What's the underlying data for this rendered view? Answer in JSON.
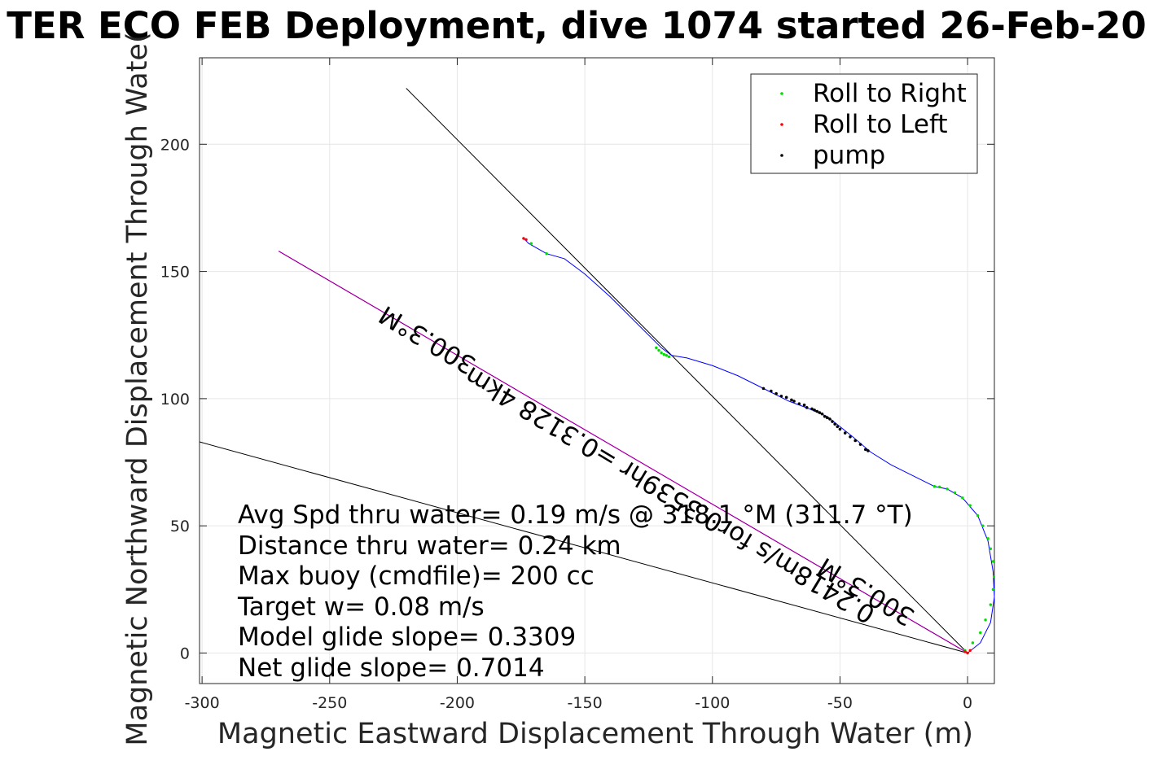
{
  "chart_data": {
    "type": "line",
    "title": "TER ECO FEB Deployment, dive 1074 started 26-Feb-20",
    "xlabel": "Magnetic Eastward Displacement Through Water (m)",
    "ylabel": "Magnetic Northward Displacement Through Wate(",
    "xlim": [
      -301,
      10.5
    ],
    "ylim": [
      -12,
      234
    ],
    "xticks": [
      -300,
      -250,
      -200,
      -150,
      -100,
      -50,
      0
    ],
    "xtick_labels": [
      "-300",
      "-250",
      "-200",
      "-150",
      "-100",
      "-50",
      "0"
    ],
    "yticks": [
      0,
      50,
      100,
      150,
      200
    ],
    "ytick_labels": [
      "0",
      "50",
      "100",
      "150",
      "200"
    ],
    "grid": true,
    "legend_placement": "top-right",
    "legend": [
      {
        "label": "Roll to Right",
        "color": "#00dd00"
      },
      {
        "label": "Roll to Left",
        "color": "#ff0000"
      },
      {
        "label": "pump",
        "color": "#000000"
      }
    ],
    "track": {
      "color": "#0000ff",
      "x": [
        0,
        5,
        9,
        10.5,
        10,
        8,
        4,
        -2,
        -8,
        -13,
        -20,
        -30,
        -38,
        -45,
        -55,
        -62,
        -70,
        -80,
        -90,
        -100,
        -110,
        -116,
        -120,
        -128,
        -140,
        -150,
        -158,
        -165,
        -172,
        -174
      ],
      "y": [
        0,
        4,
        12,
        22,
        32,
        44,
        54,
        61,
        64.5,
        65.5,
        69,
        74,
        79,
        85,
        93,
        96,
        99,
        104,
        109,
        113,
        116,
        117,
        120,
        128,
        140,
        149,
        155,
        157,
        161,
        163
      ]
    },
    "roll_right": {
      "x": [
        -1,
        2,
        5,
        7,
        9,
        10,
        10.5,
        10,
        9,
        8,
        6,
        4,
        1,
        -2,
        -5,
        -8,
        -11,
        -13,
        -117,
        -118,
        -119,
        -120,
        -121,
        -122,
        -165,
        -171
      ],
      "y": [
        1,
        4,
        8,
        13,
        19,
        25,
        30,
        36,
        41,
        45,
        50,
        54,
        58,
        61,
        63,
        64.5,
        65.3,
        65.5,
        116.5,
        117,
        117.4,
        118,
        119,
        120,
        157,
        161
      ]
    },
    "roll_left": {
      "x": [
        0,
        1,
        -1,
        -174,
        -173
      ],
      "y": [
        0,
        1,
        0.5,
        163,
        162.5
      ]
    },
    "pump": {
      "x": [
        -80,
        -77,
        -75,
        -73,
        -71,
        -69,
        -68,
        -66,
        -64,
        -63,
        -61,
        -60,
        -59,
        -58,
        -57,
        -56,
        -55,
        -54,
        -53,
        -52,
        -51,
        -50,
        -48,
        -46,
        -44,
        -42,
        -40,
        -39
      ],
      "y": [
        104,
        103,
        102,
        101,
        100.5,
        99.5,
        99,
        98,
        97.5,
        96.5,
        96,
        95.5,
        95,
        94.5,
        94,
        93,
        92.5,
        92,
        91,
        90,
        89,
        88,
        86.5,
        85,
        83.5,
        82,
        80,
        79.5
      ]
    },
    "black_lines": [
      {
        "x": [
          0,
          -220
        ],
        "y": [
          0,
          222
        ]
      },
      {
        "x": [
          0,
          -301
        ],
        "y": [
          0,
          83
        ]
      }
    ],
    "magenta_line": {
      "color": "#ff00ff",
      "x": [
        0,
        -270
      ],
      "y": [
        0,
        158
      ]
    },
    "rotated_labels": [
      {
        "text": "300.3°M",
        "x": -210,
        "y": 126,
        "angle": 211
      },
      {
        "text": "0.2418m/s for0.3539hr =0.3128 4km",
        "x": -115,
        "y": 65,
        "angle": 211
      },
      {
        "text": "300.3°M",
        "x": -38,
        "y": 27,
        "angle": 211
      }
    ],
    "annotations": [
      "Avg Spd thru water=  0.19 m/s @ 318.1 °M (311.7 °T)",
      "Distance thru water=  0.24 km",
      "Max buoy (cmdfile)= 200 cc",
      "Target w= 0.08 m/s",
      "Model glide slope= 0.3309",
      "Net glide slope= 0.7014"
    ]
  }
}
